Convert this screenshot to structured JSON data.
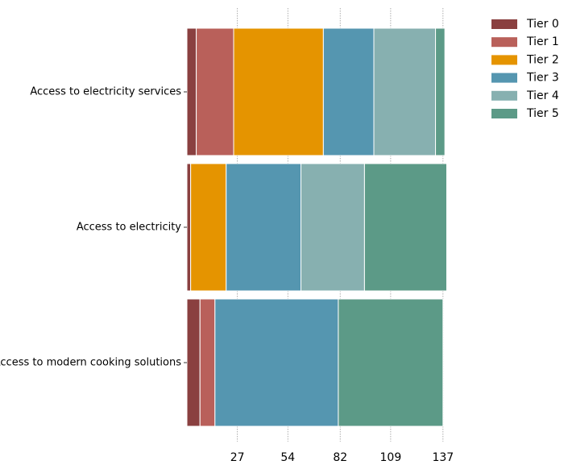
{
  "chart_data": {
    "type": "bar",
    "orientation": "horizontal",
    "stacked": true,
    "categories": [
      "Access to electricity services",
      "Access to electricity",
      "Access to modern cooking solutions"
    ],
    "series": [
      {
        "name": "Tier 0",
        "color": "#8a4040",
        "values": [
          5,
          2,
          7
        ]
      },
      {
        "name": "Tier 1",
        "color": "#b9605a",
        "values": [
          20,
          0,
          8
        ]
      },
      {
        "name": "Tier 2",
        "color": "#e59400",
        "values": [
          48,
          19,
          0
        ]
      },
      {
        "name": "Tier 3",
        "color": "#5596b0",
        "values": [
          27,
          40,
          66
        ]
      },
      {
        "name": "Tier 4",
        "color": "#87b0b0",
        "values": [
          33,
          34,
          0
        ]
      },
      {
        "name": "Tier 5",
        "color": "#5c9a87",
        "values": [
          5,
          44,
          56
        ]
      }
    ],
    "xticks": [
      27,
      54,
      82,
      109,
      137
    ],
    "xlim": [
      0,
      138
    ],
    "title": "",
    "xlabel": "",
    "ylabel": "",
    "grid": "vertical dotted lines",
    "legend_position": "top-right"
  }
}
